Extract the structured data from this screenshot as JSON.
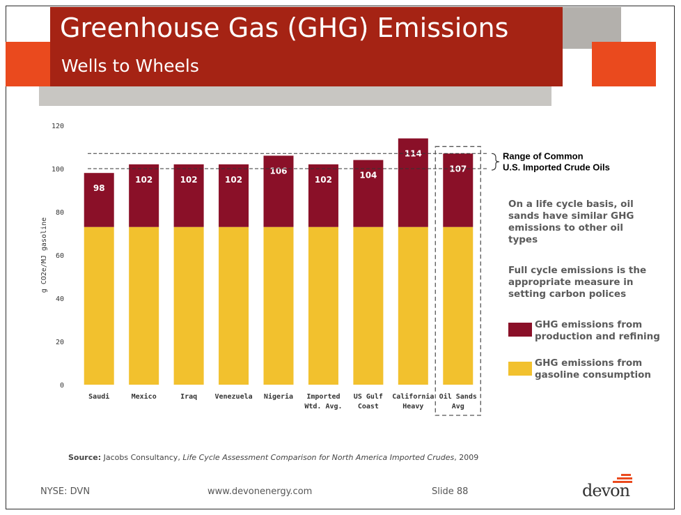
{
  "slide": {
    "title": "Greenhouse Gas (GHG) Emissions",
    "subtitle": "Wells to Wheels",
    "accent_color": "#a52314",
    "orange_color": "#ea4a1e"
  },
  "chart_data": {
    "type": "bar",
    "stacked": true,
    "ylabel": "g CO2e/MJ gasoline",
    "ylim": [
      0,
      120
    ],
    "yticks": [
      0,
      20,
      40,
      60,
      80,
      100,
      120
    ],
    "categories": [
      [
        "Saudi"
      ],
      [
        "Mexico"
      ],
      [
        "Iraq"
      ],
      [
        "Venezuela"
      ],
      [
        "Nigeria"
      ],
      [
        "Imported",
        "Wtd. Avg."
      ],
      [
        "US Gulf",
        "Coast"
      ],
      [
        "California",
        "Heavy"
      ],
      [
        "Oil Sands",
        "Avg"
      ]
    ],
    "totals": [
      98,
      102,
      102,
      102,
      106,
      102,
      104,
      114,
      107
    ],
    "series": [
      {
        "name": "GHG emissions from gasoline consumption",
        "color": "#f2c12e",
        "values": [
          73,
          73,
          73,
          73,
          73,
          73,
          73,
          73,
          73
        ]
      },
      {
        "name": "GHG emissions from production and refining",
        "color": "#8a1028",
        "values": [
          25,
          29,
          29,
          29,
          33,
          29,
          31,
          41,
          34
        ]
      }
    ],
    "range_band": {
      "label": [
        "Range of Common",
        "U.S. Imported Crude Oils"
      ],
      "low": 100,
      "high": 107
    },
    "highlight_category": 8
  },
  "notes": {
    "note1": [
      "On a life cycle basis, oil",
      "sands have similar GHG",
      "emissions to other oil",
      "types"
    ],
    "note2": [
      "Full cycle emissions is the",
      "appropriate measure in",
      "setting carbon polices"
    ]
  },
  "legend": {
    "items": [
      {
        "lines": [
          "GHG emissions from",
          "production and refining"
        ],
        "color": "#8a1028"
      },
      {
        "lines": [
          "GHG emissions from",
          "gasoline consumption"
        ],
        "color": "#f2c12e"
      }
    ]
  },
  "source": {
    "label": "Source:",
    "text": " Jacobs Consultancy, ",
    "title": "Life Cycle Assessment Comparison for North America Imported Crudes",
    "year": ", 2009"
  },
  "footer": {
    "ticker": "NYSE: DVN",
    "url": "www.devonenergy.com",
    "slide": "Slide 88",
    "logo": "devon"
  }
}
